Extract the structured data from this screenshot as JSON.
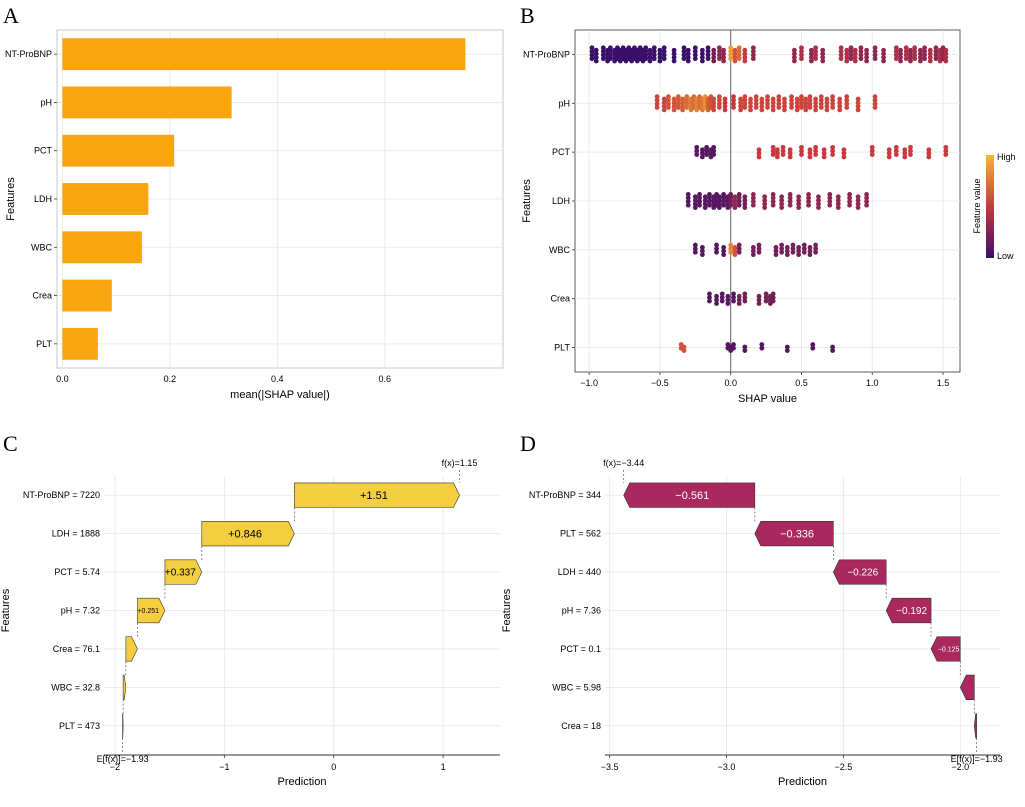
{
  "colors": {
    "bar": "#F8A50F",
    "positive": "#F3CE3F",
    "negative": "#A9285E",
    "feature_low": "#3A0F6A",
    "feature_mid": "#C8383E",
    "feature_high": "#F4B82E"
  },
  "chart_data": [
    {
      "panel": "A",
      "type": "bar",
      "orientation": "horizontal",
      "categories": [
        "NT-ProBNP",
        "pH",
        "PCT",
        "LDH",
        "WBC",
        "Crea",
        "PLT"
      ],
      "values": [
        0.75,
        0.315,
        0.208,
        0.16,
        0.148,
        0.092,
        0.066
      ],
      "xlabel": "mean(|SHAP value|)",
      "ylabel": "Features",
      "xlim": [
        -0.01,
        0.82
      ],
      "xticks": [
        "0.0",
        "0.2",
        "0.4",
        "0.6"
      ],
      "xtick_values": [
        0.0,
        0.2,
        0.4,
        0.6
      ]
    },
    {
      "panel": "B",
      "type": "scatter",
      "subtype": "beeswarm",
      "categories": [
        "NT-ProBNP",
        "pH",
        "PCT",
        "LDH",
        "WBC",
        "Crea",
        "PLT"
      ],
      "xlabel": "SHAP value",
      "ylabel": "Features",
      "xlim": [
        -1.1,
        1.62
      ],
      "xticks": [
        "−1.0",
        "−0.5",
        "0.0",
        "0.5",
        "1.0",
        "1.5"
      ],
      "xtick_values": [
        -1.0,
        -0.5,
        0.0,
        0.5,
        1.0,
        1.5
      ],
      "legend": {
        "title": "Feature value",
        "high": "High",
        "low": "Low",
        "placement": "right"
      },
      "point_groups": [
        {
          "feature": "NT-ProBNP",
          "spread": 4,
          "points": [
            [
              -0.98,
              0
            ],
            [
              -0.95,
              0
            ],
            [
              -0.9,
              0
            ],
            [
              -0.87,
              0
            ],
            [
              -0.85,
              0
            ],
            [
              -0.82,
              0
            ],
            [
              -0.8,
              0
            ],
            [
              -0.78,
              0
            ],
            [
              -0.76,
              0
            ],
            [
              -0.74,
              0
            ],
            [
              -0.72,
              0
            ],
            [
              -0.7,
              0
            ],
            [
              -0.68,
              0
            ],
            [
              -0.66,
              0
            ],
            [
              -0.64,
              0
            ],
            [
              -0.62,
              0
            ],
            [
              -0.6,
              0
            ],
            [
              -0.57,
              0
            ],
            [
              -0.54,
              0
            ],
            [
              -0.5,
              0
            ],
            [
              -0.47,
              0
            ],
            [
              -0.4,
              0
            ],
            [
              -0.33,
              0
            ],
            [
              -0.3,
              0
            ],
            [
              -0.25,
              0
            ],
            [
              -0.2,
              0
            ],
            [
              -0.16,
              0
            ],
            [
              -0.12,
              0.2
            ],
            [
              -0.08,
              0.3
            ],
            [
              -0.05,
              0.3
            ],
            [
              0.0,
              0.9
            ],
            [
              0.03,
              0.6
            ],
            [
              0.06,
              0.7
            ],
            [
              0.1,
              0.5
            ],
            [
              0.16,
              0.3
            ],
            [
              0.45,
              0.3
            ],
            [
              0.5,
              0.4
            ],
            [
              0.57,
              0.3
            ],
            [
              0.6,
              0.4
            ],
            [
              0.65,
              0.3
            ],
            [
              0.78,
              0.4
            ],
            [
              0.82,
              0.4
            ],
            [
              0.85,
              0.3
            ],
            [
              0.88,
              0.4
            ],
            [
              0.92,
              0.3
            ],
            [
              0.96,
              0.3
            ],
            [
              1.02,
              0.3
            ],
            [
              1.08,
              0.3
            ],
            [
              1.17,
              0.4
            ],
            [
              1.2,
              0.3
            ],
            [
              1.24,
              0.4
            ],
            [
              1.27,
              0.3
            ],
            [
              1.3,
              0.4
            ],
            [
              1.34,
              0.3
            ],
            [
              1.37,
              0.3
            ],
            [
              1.41,
              0.4
            ],
            [
              1.45,
              0.3
            ],
            [
              1.48,
              0.4
            ],
            [
              1.5,
              0.3
            ],
            [
              1.52,
              0.4
            ]
          ]
        },
        {
          "feature": "pH",
          "spread": 4,
          "points": [
            [
              -0.52,
              0.55
            ],
            [
              -0.47,
              0.55
            ],
            [
              -0.44,
              0.6
            ],
            [
              -0.4,
              0.6
            ],
            [
              -0.37,
              0.62
            ],
            [
              -0.34,
              0.65
            ],
            [
              -0.31,
              0.7
            ],
            [
              -0.28,
              0.75
            ],
            [
              -0.26,
              0.7
            ],
            [
              -0.24,
              0.8
            ],
            [
              -0.22,
              0.7
            ],
            [
              -0.2,
              0.75
            ],
            [
              -0.18,
              0.85
            ],
            [
              -0.16,
              0.65
            ],
            [
              -0.14,
              0.6
            ],
            [
              -0.12,
              0.55
            ],
            [
              -0.08,
              0.55
            ],
            [
              -0.04,
              0.5
            ],
            [
              0.02,
              0.5
            ],
            [
              0.07,
              0.55
            ],
            [
              0.1,
              0.55
            ],
            [
              0.14,
              0.55
            ],
            [
              0.18,
              0.55
            ],
            [
              0.22,
              0.55
            ],
            [
              0.26,
              0.55
            ],
            [
              0.3,
              0.55
            ],
            [
              0.34,
              0.55
            ],
            [
              0.38,
              0.55
            ],
            [
              0.43,
              0.55
            ],
            [
              0.47,
              0.55
            ],
            [
              0.5,
              0.55
            ],
            [
              0.53,
              0.55
            ],
            [
              0.56,
              0.55
            ],
            [
              0.6,
              0.55
            ],
            [
              0.64,
              0.55
            ],
            [
              0.68,
              0.55
            ],
            [
              0.72,
              0.55
            ],
            [
              0.77,
              0.55
            ],
            [
              0.82,
              0.55
            ],
            [
              0.9,
              0.55
            ],
            [
              1.02,
              0.55
            ]
          ]
        },
        {
          "feature": "PCT",
          "spread": 3,
          "points": [
            [
              -0.24,
              0.1
            ],
            [
              -0.2,
              0.1
            ],
            [
              -0.17,
              0.1
            ],
            [
              -0.14,
              0.1
            ],
            [
              -0.12,
              0.1
            ],
            [
              0.2,
              0.5
            ],
            [
              0.3,
              0.5
            ],
            [
              0.33,
              0.5
            ],
            [
              0.37,
              0.5
            ],
            [
              0.42,
              0.5
            ],
            [
              0.5,
              0.5
            ],
            [
              0.56,
              0.5
            ],
            [
              0.6,
              0.5
            ],
            [
              0.66,
              0.5
            ],
            [
              0.72,
              0.5
            ],
            [
              0.8,
              0.5
            ],
            [
              1.0,
              0.5
            ],
            [
              1.12,
              0.5
            ],
            [
              1.17,
              0.5
            ],
            [
              1.23,
              0.5
            ],
            [
              1.27,
              0.5
            ],
            [
              1.4,
              0.5
            ],
            [
              1.52,
              0.5
            ]
          ]
        },
        {
          "feature": "LDH",
          "spread": 4,
          "points": [
            [
              -0.3,
              0.1
            ],
            [
              -0.25,
              0.1
            ],
            [
              -0.22,
              0.1
            ],
            [
              -0.18,
              0.1
            ],
            [
              -0.15,
              0.1
            ],
            [
              -0.12,
              0.1
            ],
            [
              -0.1,
              0.1
            ],
            [
              -0.08,
              0.1
            ],
            [
              -0.05,
              0.1
            ],
            [
              -0.02,
              0.1
            ],
            [
              0.0,
              0.2
            ],
            [
              0.03,
              0.3
            ],
            [
              0.06,
              0.2
            ],
            [
              0.1,
              0.2
            ],
            [
              0.16,
              0.3
            ],
            [
              0.24,
              0.3
            ],
            [
              0.3,
              0.3
            ],
            [
              0.36,
              0.3
            ],
            [
              0.42,
              0.3
            ],
            [
              0.48,
              0.3
            ],
            [
              0.55,
              0.3
            ],
            [
              0.62,
              0.3
            ],
            [
              0.7,
              0.3
            ],
            [
              0.76,
              0.3
            ],
            [
              0.84,
              0.3
            ],
            [
              0.9,
              0.3
            ],
            [
              0.96,
              0.3
            ]
          ]
        },
        {
          "feature": "WBC",
          "spread": 3,
          "points": [
            [
              -0.25,
              0.1
            ],
            [
              -0.2,
              0.1
            ],
            [
              -0.1,
              0.1
            ],
            [
              -0.05,
              0.1
            ],
            [
              0.0,
              0.8
            ],
            [
              0.03,
              0.6
            ],
            [
              0.06,
              0.2
            ],
            [
              0.16,
              0.2
            ],
            [
              0.2,
              0.2
            ],
            [
              0.32,
              0.2
            ],
            [
              0.36,
              0.2
            ],
            [
              0.4,
              0.2
            ],
            [
              0.44,
              0.2
            ],
            [
              0.48,
              0.2
            ],
            [
              0.52,
              0.2
            ],
            [
              0.56,
              0.2
            ],
            [
              0.6,
              0.2
            ]
          ]
        },
        {
          "feature": "Crea",
          "spread": 3,
          "points": [
            [
              -0.15,
              0.1
            ],
            [
              -0.1,
              0.1
            ],
            [
              -0.06,
              0.1
            ],
            [
              -0.02,
              0.1
            ],
            [
              0.02,
              0.1
            ],
            [
              0.06,
              0.2
            ],
            [
              0.1,
              0.2
            ],
            [
              0.2,
              0.2
            ],
            [
              0.25,
              0.2
            ],
            [
              0.28,
              0.2
            ],
            [
              0.3,
              0.2
            ]
          ]
        },
        {
          "feature": "PLT",
          "spread": 2,
          "points": [
            [
              -0.35,
              0.6
            ],
            [
              -0.33,
              0.6
            ],
            [
              -0.02,
              0.1
            ],
            [
              0.0,
              0.1
            ],
            [
              0.02,
              0.1
            ],
            [
              0.1,
              0.1
            ],
            [
              0.22,
              0.1
            ],
            [
              0.4,
              0.1
            ],
            [
              0.58,
              0.1
            ],
            [
              0.72,
              0.1
            ]
          ]
        }
      ]
    },
    {
      "panel": "C",
      "type": "bar",
      "subtype": "waterfall",
      "steps": [
        {
          "label": "NT-ProBNP = 7220",
          "start": -0.36,
          "end": 1.15,
          "text": "+1.51"
        },
        {
          "label": "LDH = 1888",
          "start": -1.206,
          "end": -0.36,
          "text": "+0.846"
        },
        {
          "label": "PCT = 5.74",
          "start": -1.543,
          "end": -1.206,
          "text": "+0.337"
        },
        {
          "label": "pH = 7.32",
          "start": -1.794,
          "end": -1.543,
          "text": "+0.251"
        },
        {
          "label": "Crea = 76.1",
          "start": -1.9,
          "end": -1.794,
          "text": ""
        },
        {
          "label": "WBC = 32.8",
          "start": -1.925,
          "end": -1.9,
          "text": ""
        },
        {
          "label": "PLT = 473",
          "start": -1.93,
          "end": -1.925,
          "text": ""
        }
      ],
      "fx_label": "f(x)=1.15",
      "efx_label": "E[f(x)]=−1.93",
      "xlabel": "Prediction",
      "ylabel": "Features",
      "xlim": [
        -2.1,
        1.52
      ],
      "xticks": [
        "−2",
        "−1",
        "0",
        "1"
      ],
      "xtick_values": [
        -2,
        -1,
        0,
        1
      ]
    },
    {
      "panel": "D",
      "type": "bar",
      "subtype": "waterfall",
      "steps": [
        {
          "label": "NT-ProBNP = 344",
          "start": -2.879,
          "end": -3.44,
          "text": "−0.561"
        },
        {
          "label": "PLT = 562",
          "start": -2.543,
          "end": -2.879,
          "text": "−0.336"
        },
        {
          "label": "LDH = 440",
          "start": -2.317,
          "end": -2.543,
          "text": "−0.226"
        },
        {
          "label": "pH = 7.36",
          "start": -2.125,
          "end": -2.317,
          "text": "−0.192"
        },
        {
          "label": "PCT = 0.1",
          "start": -2.0,
          "end": -2.125,
          "text": "−0.125"
        },
        {
          "label": "WBC = 5.98",
          "start": -1.94,
          "end": -2.0,
          "text": ""
        },
        {
          "label": "Crea = 18",
          "start": -1.93,
          "end": -1.94,
          "text": ""
        }
      ],
      "fx_label": "f(x)=−3.44",
      "efx_label": "E[f(x)]=−1.93",
      "xlabel": "Prediction",
      "ylabel": "Features",
      "xlim": [
        -3.52,
        -1.83
      ],
      "xticks": [
        "−3.5",
        "−3.0",
        "−2.5",
        "−2.0"
      ],
      "xtick_values": [
        -3.5,
        -3.0,
        -2.5,
        -2.0
      ]
    }
  ],
  "panels": {
    "a": "A",
    "b": "B",
    "c": "C",
    "d": "D"
  }
}
